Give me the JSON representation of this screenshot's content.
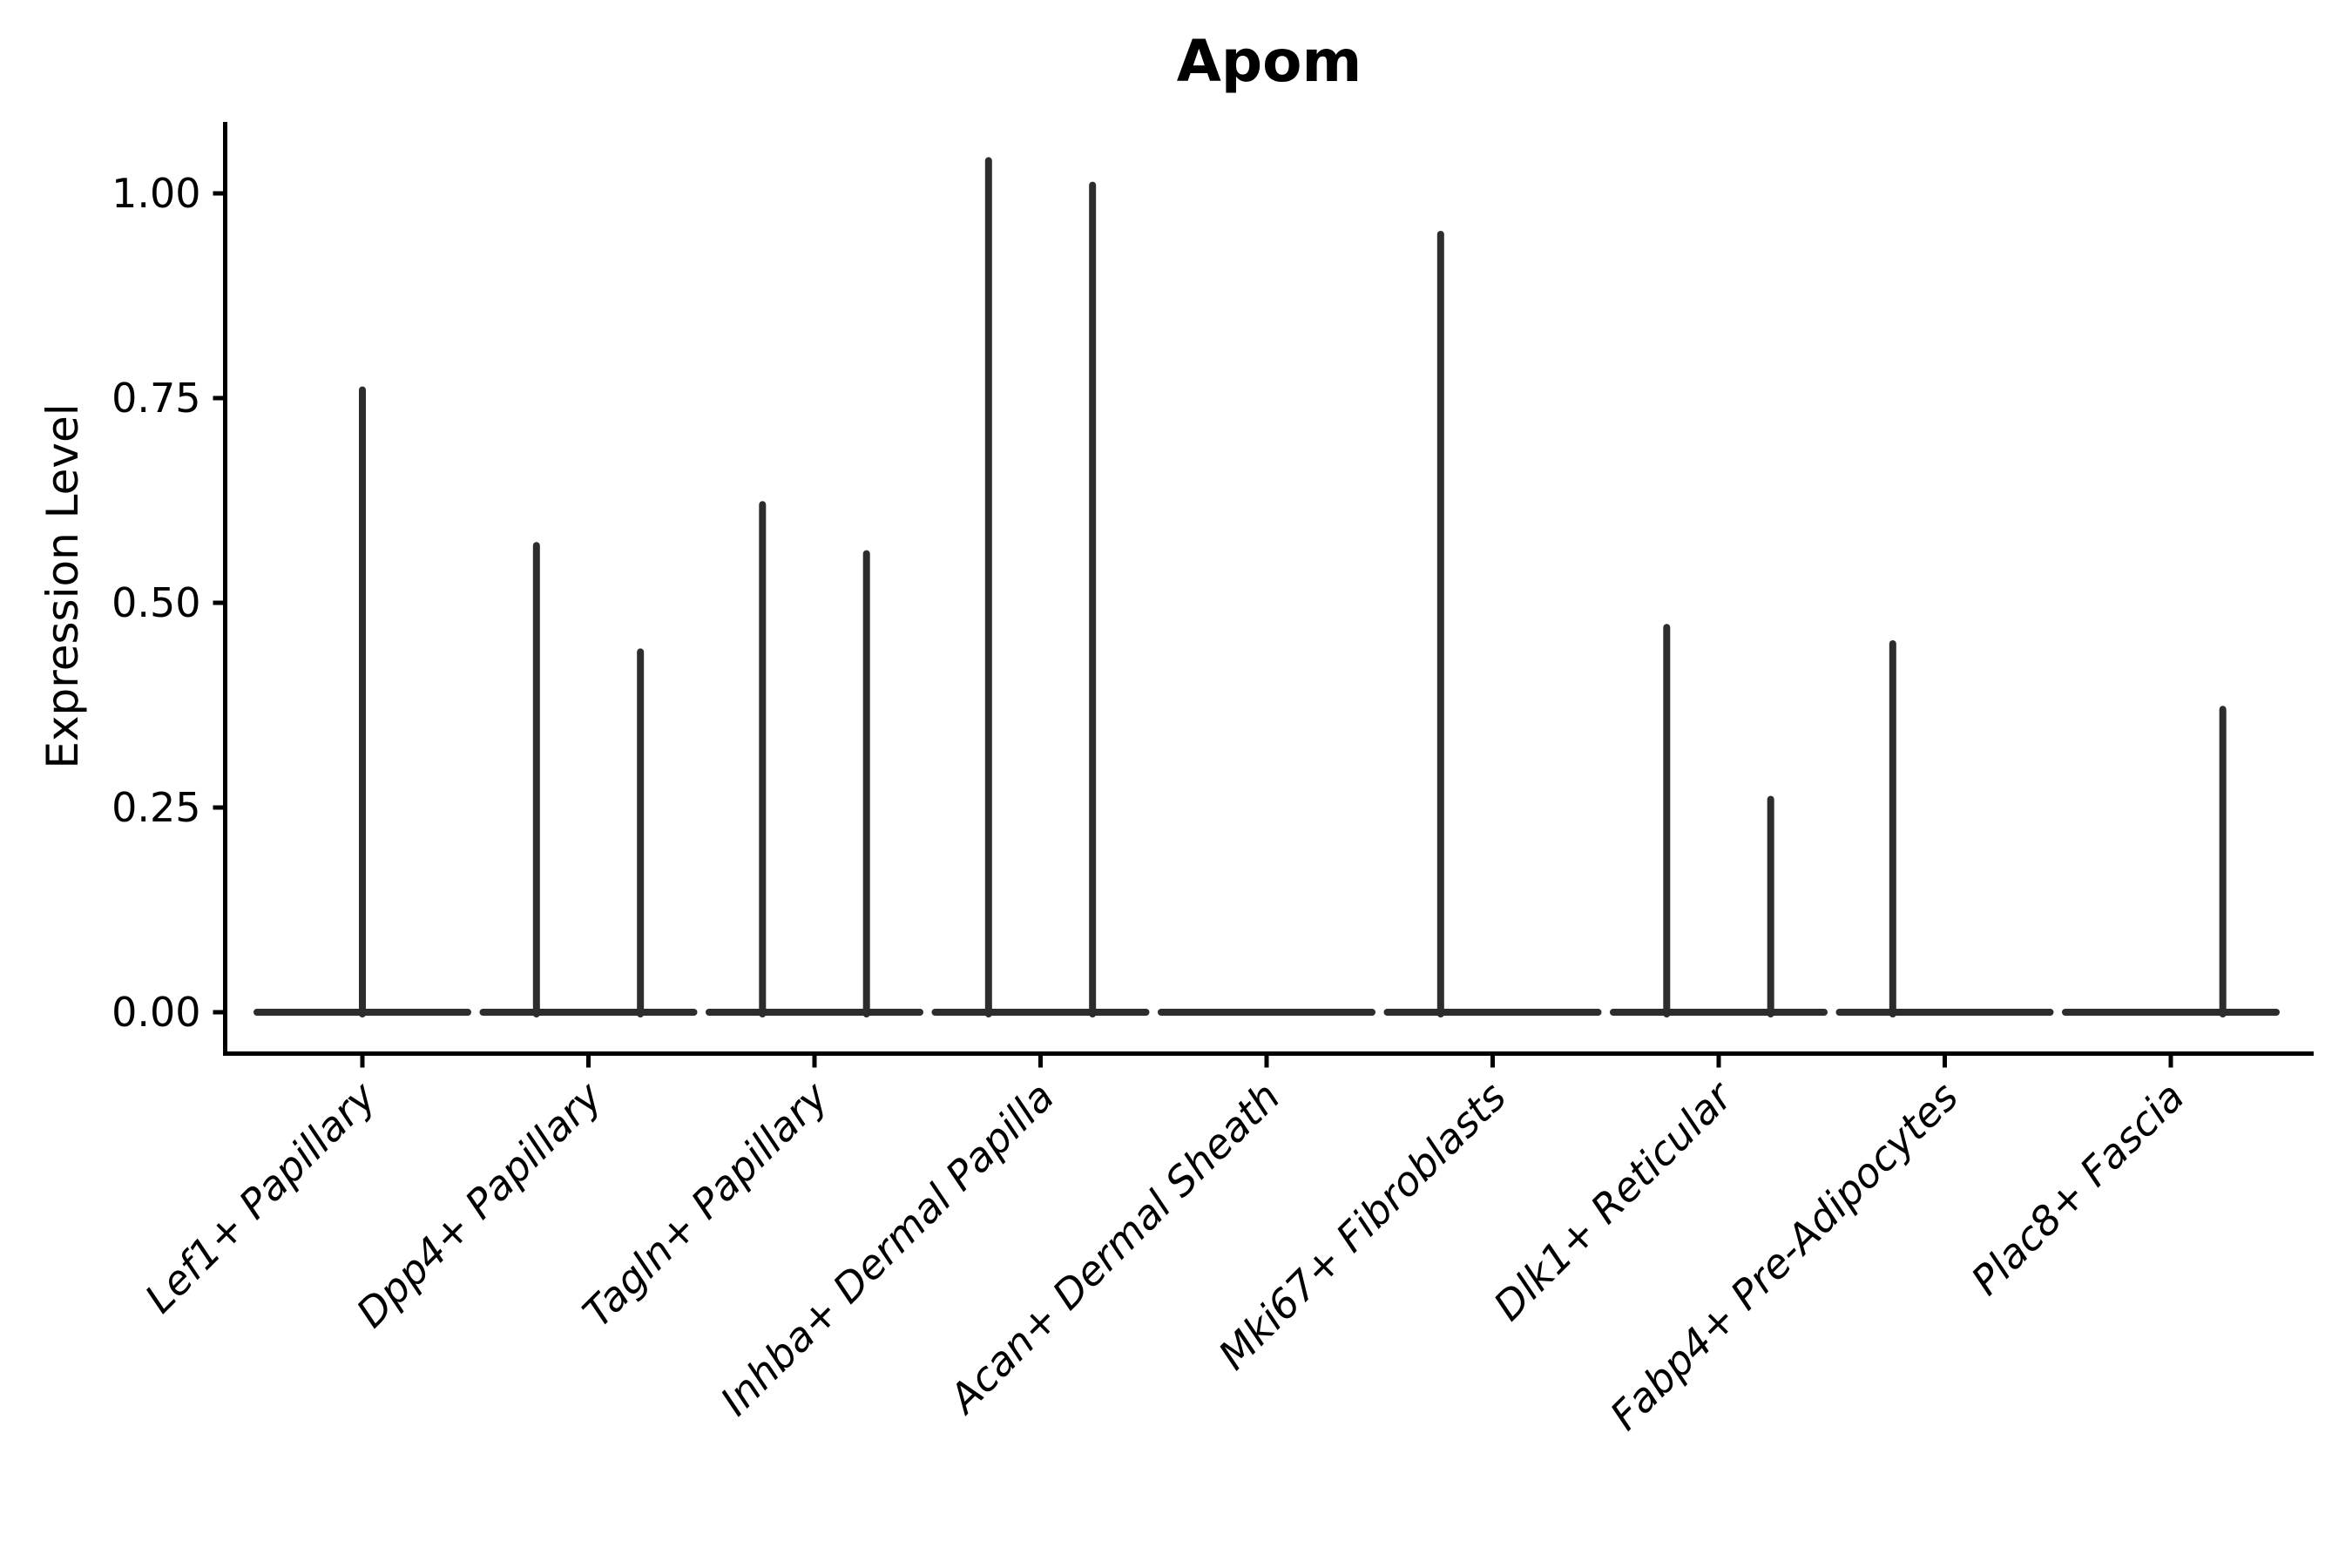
{
  "chart_data": {
    "type": "violin",
    "title": "Apom",
    "xlabel": "",
    "ylabel": "Expression Level",
    "ylim": [
      -0.05,
      1.09
    ],
    "yticks": [
      0,
      0.25,
      0.5,
      0.75,
      1.0
    ],
    "ytick_labels": [
      "0.00",
      "0.25",
      "0.50",
      "0.75",
      "1.00"
    ],
    "xtick_label_style": "italic, rotated 45deg, right-anchored",
    "grid": "off",
    "legend": "none",
    "colors": {
      "violin": "#2d2d2d",
      "axis": "#000000",
      "background": "#ffffff"
    },
    "categories": [
      "Lef1+ Papillary",
      "Dpp4+ Papillary",
      "Tagln+ Papillary",
      "Inhba+ Dermal Papilla",
      "Acan+ Dermal Sheath",
      "Mki67+ Fibroblasts",
      "Dlk1+ Reticular",
      "Fabp4+ Pre-Adipocytes",
      "Plac8+ Fascia"
    ],
    "violins": [
      {
        "category": "Lef1+ Papillary",
        "base_value": 0,
        "spikes": [
          {
            "pos": 0,
            "max": 0.76
          }
        ]
      },
      {
        "category": "Dpp4+ Papillary",
        "base_value": 0,
        "spikes": [
          {
            "pos": -0.23,
            "max": 0.57
          },
          {
            "pos": 0.23,
            "max": 0.44
          }
        ]
      },
      {
        "category": "Tagln+ Papillary",
        "base_value": 0,
        "spikes": [
          {
            "pos": -0.23,
            "max": 0.62
          },
          {
            "pos": 0.23,
            "max": 0.56
          }
        ]
      },
      {
        "category": "Inhba+ Dermal Papilla",
        "base_value": 0,
        "spikes": [
          {
            "pos": -0.23,
            "max": 1.04
          },
          {
            "pos": 0.23,
            "max": 1.01
          }
        ]
      },
      {
        "category": "Acan+ Dermal Sheath",
        "base_value": 0,
        "spikes": []
      },
      {
        "category": "Mki67+ Fibroblasts",
        "base_value": 0,
        "spikes": [
          {
            "pos": -0.23,
            "max": 0.95
          }
        ]
      },
      {
        "category": "Dlk1+ Reticular",
        "base_value": 0,
        "spikes": [
          {
            "pos": -0.23,
            "max": 0.47
          },
          {
            "pos": 0.23,
            "max": 0.26
          }
        ]
      },
      {
        "category": "Fabp4+ Pre-Adipocytes",
        "base_value": 0,
        "spikes": [
          {
            "pos": -0.23,
            "max": 0.45
          }
        ]
      },
      {
        "category": "Plac8+ Fascia",
        "base_value": 0,
        "spikes": [
          {
            "pos": 0.23,
            "max": 0.37
          }
        ]
      }
    ]
  }
}
